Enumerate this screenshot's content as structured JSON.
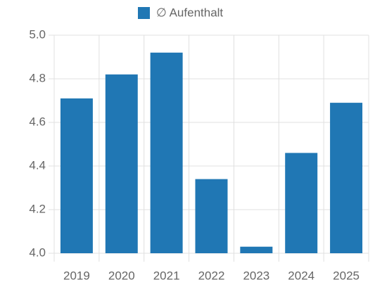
{
  "chart_data": {
    "type": "bar",
    "legend": {
      "position": "top"
    },
    "categories": [
      "2019",
      "2020",
      "2021",
      "2022",
      "2023",
      "2024",
      "2025"
    ],
    "series": [
      {
        "name": "∅ Aufenthalt",
        "color": "#2077b4",
        "values": [
          4.71,
          4.82,
          4.92,
          4.34,
          4.03,
          4.46,
          4.69
        ]
      }
    ],
    "ylim": [
      4.0,
      5.0
    ],
    "yticks": [
      {
        "value": 4.0,
        "label": "4.0"
      },
      4.2,
      4.4,
      4.6,
      4.8,
      {
        "value": 5.0,
        "label": "5.0"
      }
    ],
    "grid": true
  }
}
